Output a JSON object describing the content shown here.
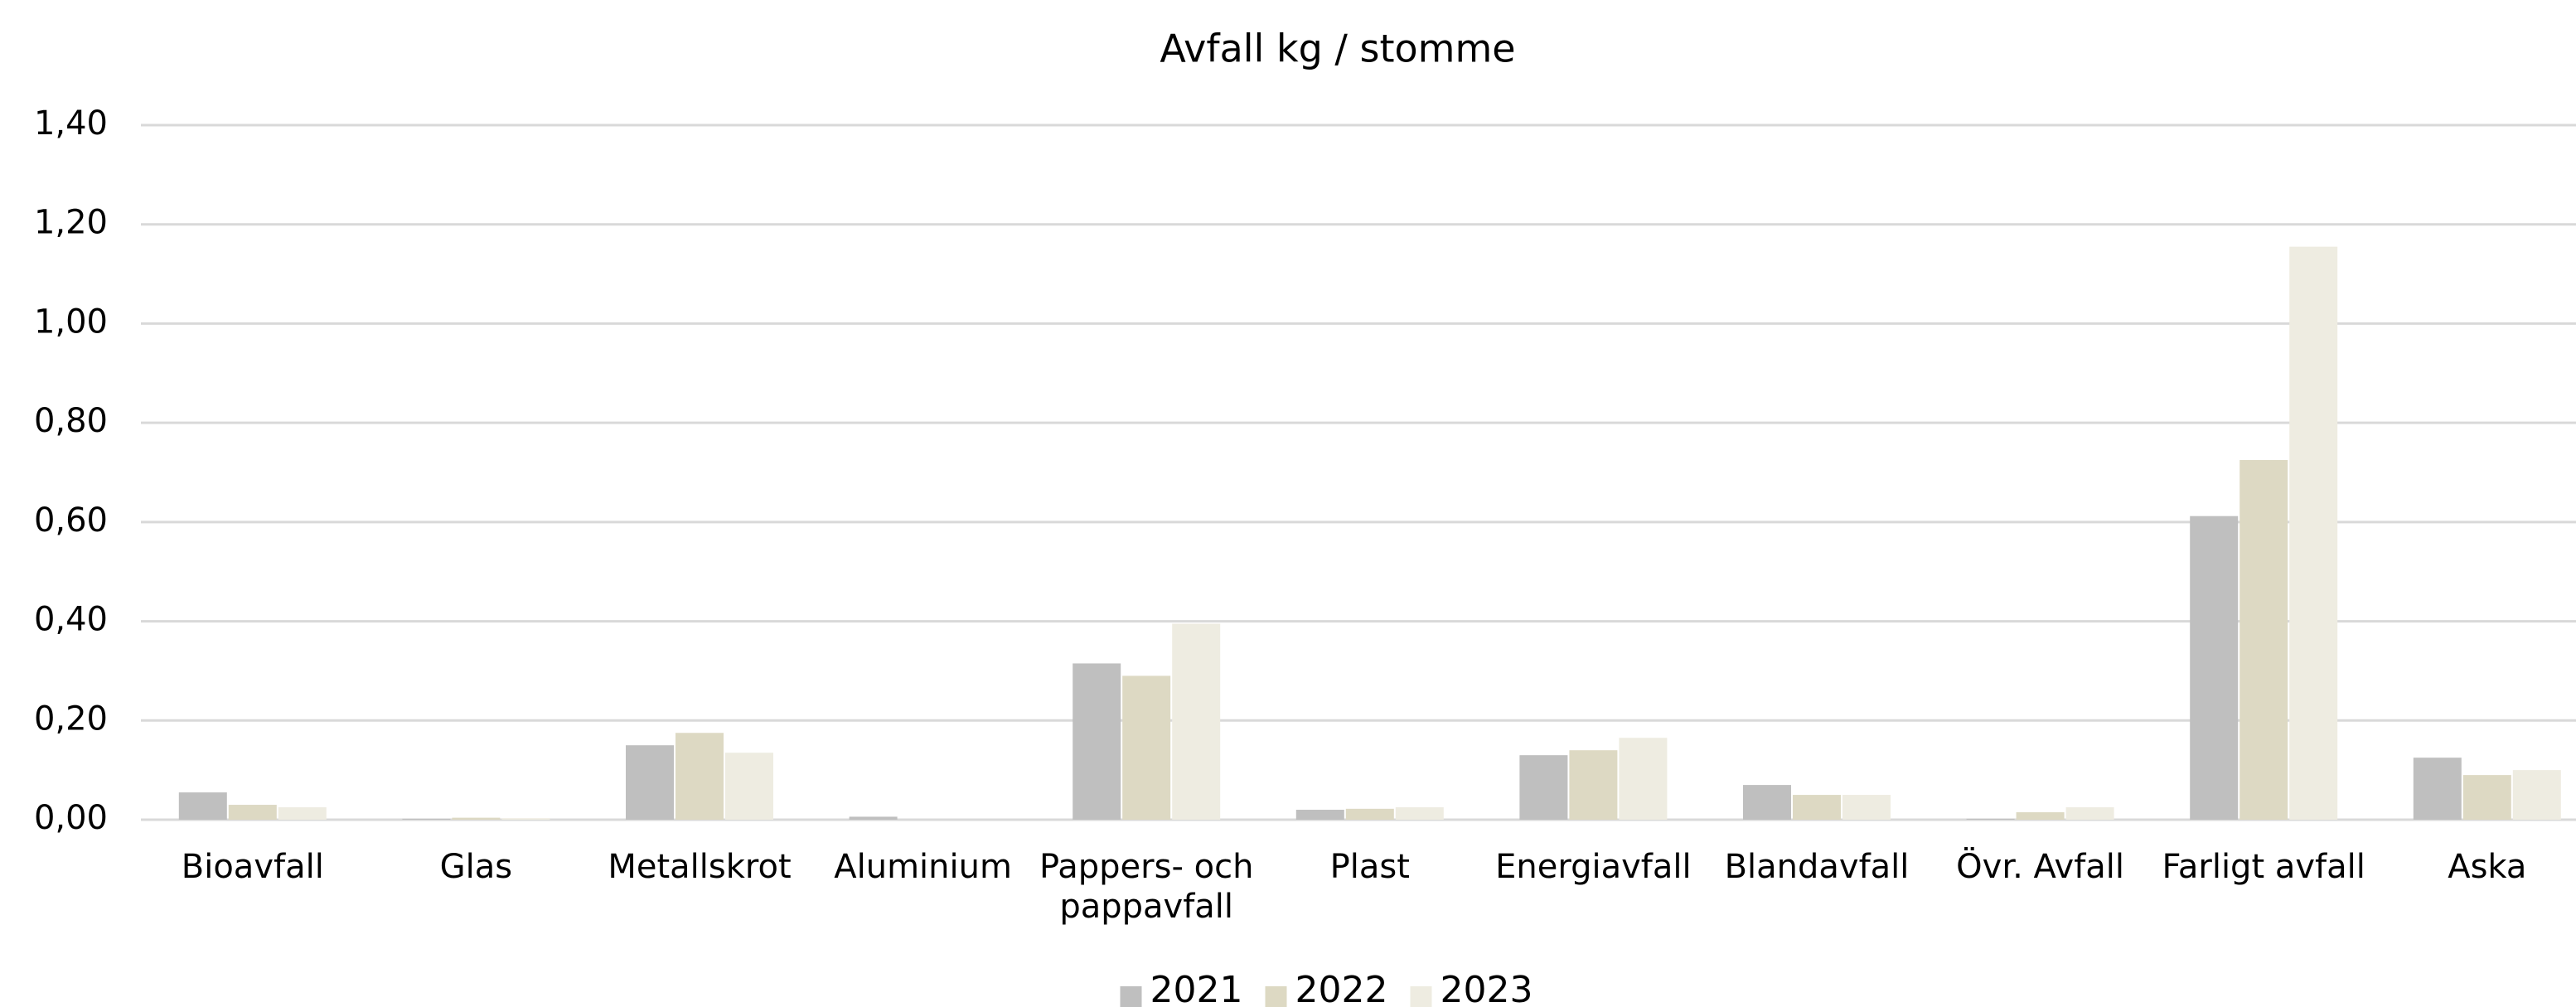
{
  "chart_data": {
    "type": "bar",
    "title": "Avfall kg / stomme",
    "categories": [
      "Bioavfall",
      "Glas",
      "Metallskrot",
      "Aluminium",
      "Pappers- och pappavfall",
      "Plast",
      "Energiavfall",
      "Blandavfall",
      "Övr. Avfall",
      "Farligt avfall",
      "Aska"
    ],
    "series": [
      {
        "name": "2021",
        "color": "#bfbfbf",
        "values": [
          0.055,
          0.002,
          0.15,
          0.006,
          0.315,
          0.02,
          0.13,
          0.07,
          0.002,
          0.612,
          0.125
        ]
      },
      {
        "name": "2022",
        "color": "#ddd9c3",
        "values": [
          0.03,
          0.004,
          0.175,
          0,
          0.29,
          0.022,
          0.14,
          0.05,
          0.015,
          0.725,
          0.09
        ]
      },
      {
        "name": "2023",
        "color": "#eeece1",
        "values": [
          0.025,
          0.003,
          0.135,
          0,
          0.395,
          0.025,
          0.165,
          0.05,
          0.025,
          1.155,
          0.1
        ]
      }
    ],
    "ylim": [
      0,
      1.4
    ],
    "yticks": [
      {
        "value": 0,
        "label": "0,00"
      },
      {
        "value": 0.2,
        "label": "0,20"
      },
      {
        "value": 0.4,
        "label": "0,40"
      },
      {
        "value": 0.6,
        "label": "0,60"
      },
      {
        "value": 0.8,
        "label": "0,80"
      },
      {
        "value": 1.0,
        "label": "1,00"
      },
      {
        "value": 1.2,
        "label": "1,20"
      },
      {
        "value": 1.4,
        "label": "1,40"
      }
    ],
    "grid": true,
    "legend": "bottom"
  }
}
